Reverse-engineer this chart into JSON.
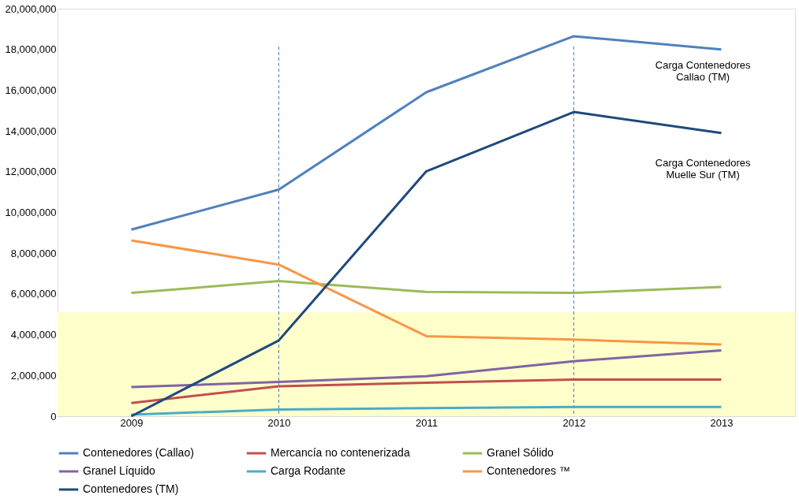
{
  "chart_data": {
    "type": "line",
    "categories": [
      "2009",
      "2010",
      "2011",
      "2012",
      "2013"
    ],
    "series": [
      {
        "name": "Contenedores (Callao)",
        "color": "#4f81bd",
        "values": [
          9160000,
          11120000,
          15900000,
          18650000,
          18000000
        ]
      },
      {
        "name": "Mercancía no contenerizada",
        "color": "#c0504d",
        "values": [
          650000,
          1470000,
          1640000,
          1800000,
          1800000
        ]
      },
      {
        "name": "Granel Sólido",
        "color": "#9bbb59",
        "values": [
          6050000,
          6630000,
          6100000,
          6050000,
          6340000
        ]
      },
      {
        "name": "Granel Líquido",
        "color": "#8064a2",
        "values": [
          1430000,
          1680000,
          1960000,
          2700000,
          3230000
        ]
      },
      {
        "name": "Carga Rodante",
        "color": "#4bacc6",
        "values": [
          80000,
          330000,
          400000,
          450000,
          450000
        ]
      },
      {
        "name": "Contenedores ™",
        "color": "#f79646",
        "values": [
          8630000,
          7440000,
          3930000,
          3760000,
          3520000
        ]
      },
      {
        "name": "Contenedores (TM)",
        "color": "#1f497d",
        "values": [
          0,
          3720000,
          12020000,
          14930000,
          13900000
        ]
      }
    ],
    "ylim": [
      0,
      20000000
    ],
    "yticks": [
      {
        "value": 0,
        "label": "0"
      },
      {
        "value": 2000000,
        "label": "2,000,000"
      },
      {
        "value": 4000000,
        "label": "4,000,000"
      },
      {
        "value": 6000000,
        "label": "6,000,000"
      },
      {
        "value": 8000000,
        "label": "8,000,000"
      },
      {
        "value": 10000000,
        "label": "10,000,000"
      },
      {
        "value": 12000000,
        "label": "12,000,000"
      },
      {
        "value": 14000000,
        "label": "14,000,000"
      },
      {
        "value": 16000000,
        "label": "16,000,000"
      },
      {
        "value": 18000000,
        "label": "18,000,000"
      },
      {
        "value": 20000000,
        "label": "20,000,000"
      }
    ],
    "ref_lines": [
      {
        "axis": "x",
        "value": "2010",
        "color": "#4f81bd",
        "line_style": "dashed"
      },
      {
        "axis": "x",
        "value": "2012",
        "color": "#4f81bd",
        "line_style": "dashed"
      }
    ],
    "bands": [
      {
        "axis": "y",
        "from": 0,
        "to": 5100000,
        "color": "#ffffcc"
      }
    ],
    "annotations": [
      "Carga Contenedores\nCallao (TM)",
      "Carga Contenedores\nMuelle Sur (TM)"
    ],
    "grid": false,
    "legend": "bottom",
    "marker": "none",
    "line_style": "solid"
  }
}
